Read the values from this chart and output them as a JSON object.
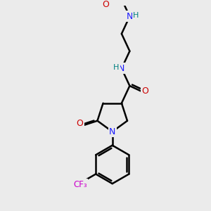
{
  "bg_color": "#ebebeb",
  "atom_colors": {
    "C": "#000000",
    "N": "#1a1aff",
    "O": "#cc0000",
    "H": "#008080",
    "F": "#cc00cc"
  },
  "bond_color": "#000000",
  "bond_width": 1.8,
  "figsize": [
    3.0,
    3.0
  ],
  "dpi": 100
}
